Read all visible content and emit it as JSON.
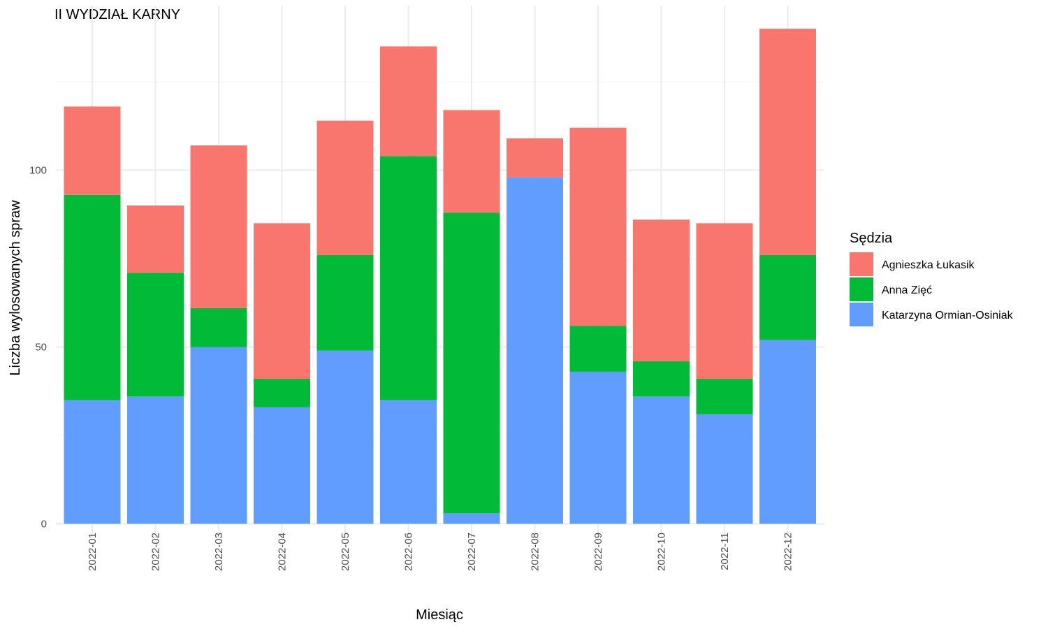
{
  "chart_data": {
    "type": "bar",
    "stacked": true,
    "title": "II WYDZIAŁ KARNY",
    "xlabel": "Miesiąc",
    "ylabel": "Liczba wylosowanych spraw",
    "ylim": [
      0,
      145
    ],
    "yticks": [
      0,
      50,
      100
    ],
    "grid": true,
    "categories": [
      "2022-01",
      "2022-02",
      "2022-03",
      "2022-04",
      "2022-05",
      "2022-06",
      "2022-07",
      "2022-08",
      "2022-09",
      "2022-10",
      "2022-11",
      "2022-12"
    ],
    "legend": {
      "title": "Sędzia",
      "position": "right"
    },
    "series": [
      {
        "name": "Katarzyna Ormian-Osiniak",
        "color": "#619CFF",
        "values": [
          35,
          36,
          50,
          33,
          49,
          35,
          3,
          98,
          43,
          36,
          31,
          52
        ]
      },
      {
        "name": "Anna Zięć",
        "color": "#00BA38",
        "values": [
          58,
          35,
          11,
          8,
          27,
          69,
          85,
          0,
          13,
          10,
          10,
          24
        ]
      },
      {
        "name": "Agnieszka Łukasik",
        "color": "#F8766D",
        "values": [
          25,
          19,
          46,
          44,
          38,
          31,
          29,
          11,
          56,
          40,
          44,
          64
        ]
      }
    ],
    "legend_order": [
      "Agnieszka Łukasik",
      "Anna Zięć",
      "Katarzyna Ormian-Osiniak"
    ]
  }
}
